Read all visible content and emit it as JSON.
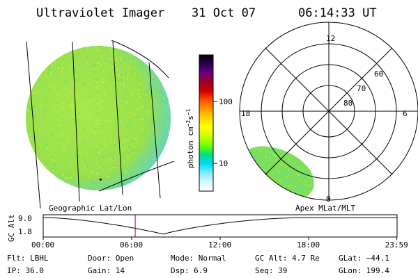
{
  "header": {
    "instrument": "Ultraviolet Imager",
    "date": "31 Oct 07",
    "time": "06:14:33 UT"
  },
  "colorbar": {
    "label": "photon cm^-2 s^-1",
    "ticks": [
      "100",
      "10"
    ],
    "stops": [
      "#000000",
      "#2a0050",
      "#6a0080",
      "#a00020",
      "#d00000",
      "#ff5000",
      "#ff9a00",
      "#ffd800",
      "#ffff00",
      "#c8ff00",
      "#6aff00",
      "#00e080",
      "#00d8ff",
      "#80ecff",
      "#d8f8ff",
      "#ffffff"
    ]
  },
  "left_panel": {
    "label": "Geographic Lat/Lon"
  },
  "right_panel": {
    "label": "Apex  MLat/MLT",
    "mlt_labels": {
      "top": "12",
      "left": "18",
      "right": "6",
      "bottom": "0"
    },
    "lat_labels": [
      "60",
      "70",
      "80"
    ]
  },
  "timeline": {
    "ylabel": "GC Alt",
    "yticks": [
      "9.0",
      "1.8"
    ],
    "xticks": [
      "00:00",
      "06:00",
      "12:00",
      "18:00",
      "23:59"
    ],
    "marker_time_hours": 6.24
  },
  "info": {
    "flt": "Flt: LBHL",
    "ip": "IP: 36.0",
    "door": "Door: Open",
    "gain": "Gain: 14",
    "mode": "Mode: Normal",
    "dsp": "Dsp:     6.9",
    "gcalt": "GC Alt: 4.7 Re",
    "seq": "Seq: 39",
    "glat": "GLat: −44.1",
    "glon": "GLon: 199.4"
  },
  "colors": {
    "aurora_base": "#9be34a",
    "aurora_edge": "#5ed6d0",
    "marker": "#c00000"
  }
}
